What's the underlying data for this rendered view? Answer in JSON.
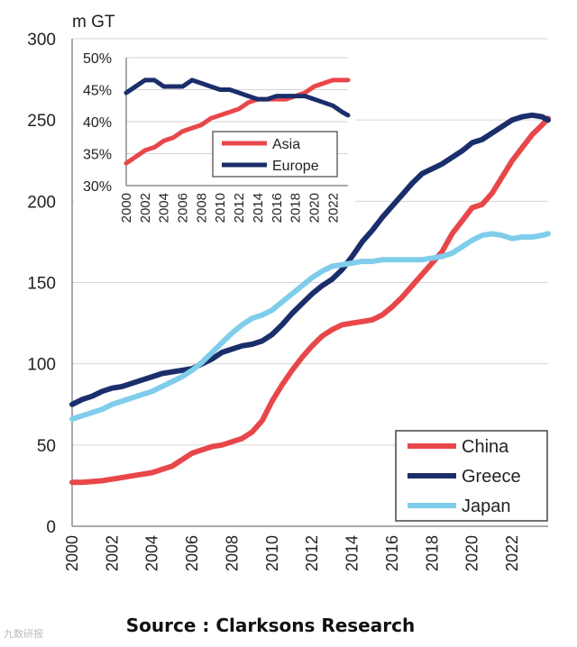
{
  "colors": {
    "china": "#E8474A",
    "greece": "#1B2E6B",
    "japan": "#7FCDEA",
    "grid": "#d6d6d6"
  },
  "source": "Source : Clarksons Research",
  "watermark": "九数研报",
  "chart_data": [
    {
      "type": "line",
      "ylabel": "m GT",
      "ylim": [
        0,
        300
      ],
      "yticks": [
        0,
        50,
        100,
        150,
        200,
        250,
        300
      ],
      "xlim": [
        2000,
        2023.8
      ],
      "xticks": [
        "2000",
        "2002",
        "2004",
        "2006",
        "2008",
        "2010",
        "2012",
        "2014",
        "2016",
        "2018",
        "2020",
        "2022"
      ],
      "legend_position": "bottom-right",
      "grid": true,
      "series": [
        {
          "name": "China",
          "color_key": "china",
          "x": [
            2000,
            2000.5,
            2001,
            2001.5,
            2002,
            2002.5,
            2003,
            2003.5,
            2004,
            2004.5,
            2005,
            2005.5,
            2006,
            2006.5,
            2007,
            2007.5,
            2008,
            2008.5,
            2009,
            2009.5,
            2010,
            2010.5,
            2011,
            2011.5,
            2012,
            2012.5,
            2013,
            2013.5,
            2014,
            2014.5,
            2015,
            2015.5,
            2016,
            2016.5,
            2017,
            2017.5,
            2018,
            2018.5,
            2019,
            2019.5,
            2020,
            2020.5,
            2021,
            2021.5,
            2022,
            2022.5,
            2023,
            2023.5,
            2023.8
          ],
          "y": [
            27,
            27,
            27.5,
            28,
            29,
            30,
            31,
            32,
            33,
            35,
            37,
            41,
            45,
            47,
            49,
            50,
            52,
            54,
            58,
            65,
            77,
            87,
            96,
            104,
            111,
            117,
            121,
            124,
            125,
            126,
            127,
            130,
            135,
            141,
            148,
            155,
            162,
            169,
            180,
            188,
            196,
            198,
            205,
            215,
            225,
            233,
            241,
            247,
            251
          ]
        },
        {
          "name": "Greece",
          "color_key": "greece",
          "x": [
            2000,
            2000.5,
            2001,
            2001.5,
            2002,
            2002.5,
            2003,
            2003.5,
            2004,
            2004.5,
            2005,
            2005.5,
            2006,
            2006.5,
            2007,
            2007.5,
            2008,
            2008.5,
            2009,
            2009.5,
            2010,
            2010.5,
            2011,
            2011.5,
            2012,
            2012.5,
            2013,
            2013.5,
            2014,
            2014.5,
            2015,
            2015.5,
            2016,
            2016.5,
            2017,
            2017.5,
            2018,
            2018.5,
            2019,
            2019.5,
            2020,
            2020.5,
            2021,
            2021.5,
            2022,
            2022.5,
            2023,
            2023.5,
            2023.8
          ],
          "y": [
            75,
            78,
            80,
            83,
            85,
            86,
            88,
            90,
            92,
            94,
            95,
            96,
            97,
            100,
            103,
            107,
            109,
            111,
            112,
            114,
            118,
            124,
            131,
            137,
            143,
            148,
            152,
            158,
            166,
            175,
            182,
            190,
            197,
            204,
            211,
            217,
            220,
            223,
            227,
            231,
            236,
            238,
            242,
            246,
            250,
            252,
            253,
            252,
            250
          ]
        },
        {
          "name": "Japan",
          "color_key": "japan",
          "x": [
            2000,
            2000.5,
            2001,
            2001.5,
            2002,
            2002.5,
            2003,
            2003.5,
            2004,
            2004.5,
            2005,
            2005.5,
            2006,
            2006.5,
            2007,
            2007.5,
            2008,
            2008.5,
            2009,
            2009.5,
            2010,
            2010.5,
            2011,
            2011.5,
            2012,
            2012.5,
            2013,
            2013.5,
            2014,
            2014.5,
            2015,
            2015.5,
            2016,
            2016.5,
            2017,
            2017.5,
            2018,
            2018.5,
            2019,
            2019.5,
            2020,
            2020.5,
            2021,
            2021.5,
            2022,
            2022.5,
            2023,
            2023.5,
            2023.8
          ],
          "y": [
            66,
            68,
            70,
            72,
            75,
            77,
            79,
            81,
            83,
            86,
            89,
            92,
            96,
            101,
            107,
            113,
            119,
            124,
            128,
            130,
            133,
            138,
            143,
            148,
            153,
            157,
            160,
            161,
            162,
            163,
            163,
            164,
            164,
            164,
            164,
            164,
            165,
            166,
            168,
            172,
            176,
            179,
            180,
            179,
            177,
            178,
            178,
            179,
            180
          ]
        }
      ]
    },
    {
      "type": "line",
      "ylim": [
        30,
        50
      ],
      "yticks": [
        "30%",
        "35%",
        "40%",
        "45%",
        "50%"
      ],
      "ytick_values": [
        30,
        35,
        40,
        45,
        50
      ],
      "xlim": [
        2000,
        2023.6
      ],
      "xticks": [
        "2000",
        "2002",
        "2004",
        "2006",
        "2008",
        "2010",
        "2012",
        "2014",
        "2016",
        "2018",
        "2020",
        "2022"
      ],
      "legend_position": "center-right",
      "grid": true,
      "series": [
        {
          "name": "Asia",
          "color_key": "china",
          "x": [
            2000,
            2001,
            2002,
            2003,
            2004,
            2005,
            2006,
            2007,
            2008,
            2009,
            2010,
            2011,
            2012,
            2013,
            2014,
            2015,
            2016,
            2017,
            2018,
            2019,
            2020,
            2021,
            2022,
            2023,
            2023.6
          ],
          "y": [
            33.5,
            34.5,
            35.5,
            36,
            37,
            37.5,
            38.5,
            39,
            39.5,
            40.5,
            41,
            41.5,
            42,
            43,
            43.5,
            43.5,
            43.5,
            43.5,
            44,
            44.5,
            45.5,
            46,
            46.5,
            46.5,
            46.5
          ]
        },
        {
          "name": "Europe",
          "color_key": "greece",
          "x": [
            2000,
            2001,
            2002,
            2003,
            2004,
            2005,
            2006,
            2007,
            2008,
            2009,
            2010,
            2011,
            2012,
            2013,
            2014,
            2015,
            2016,
            2017,
            2018,
            2019,
            2020,
            2021,
            2022,
            2023,
            2023.6
          ],
          "y": [
            44.5,
            45.5,
            46.5,
            46.5,
            45.5,
            45.5,
            45.5,
            46.5,
            46,
            45.5,
            45,
            45,
            44.5,
            44,
            43.5,
            43.5,
            44,
            44,
            44,
            44,
            43.5,
            43,
            42.5,
            41.5,
            41
          ]
        }
      ]
    }
  ]
}
